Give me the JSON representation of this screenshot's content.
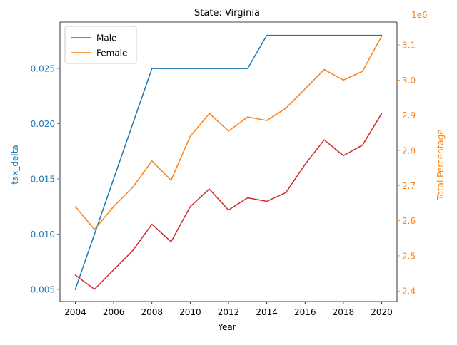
{
  "chart_data": {
    "type": "line",
    "title": "State: Virginia",
    "xlabel": "Year",
    "ylabel_left": "tax_delta",
    "ylabel_right": "Total Percentage",
    "right_axis_multiplier": "1e6",
    "x": [
      2004,
      2005,
      2006,
      2007,
      2008,
      2009,
      2010,
      2011,
      2012,
      2013,
      2014,
      2015,
      2016,
      2017,
      2018,
      2019,
      2020
    ],
    "x_ticks": [
      2004,
      2006,
      2008,
      2010,
      2012,
      2014,
      2016,
      2018,
      2020
    ],
    "xlim": [
      2003.2,
      2020.8
    ],
    "left_axis": {
      "color": "#1f77b4",
      "ylim": [
        0.0039,
        0.0292
      ],
      "ticks": [
        0.005,
        0.01,
        0.015,
        0.02,
        0.025
      ],
      "tick_labels": [
        "0.005",
        "0.010",
        "0.015",
        "0.020",
        "0.025"
      ]
    },
    "right_axis": {
      "color": "#ff7f0e",
      "ylim": [
        2.37,
        3.165
      ],
      "ticks": [
        2.4,
        2.5,
        2.6,
        2.7,
        2.8,
        2.9,
        3.0,
        3.1
      ],
      "tick_labels": [
        "2.4",
        "2.5",
        "2.6",
        "2.7",
        "2.8",
        "2.9",
        "3.0",
        "3.1"
      ]
    },
    "series": [
      {
        "axis": "left",
        "color": "#1f77b4",
        "values": [
          0.005,
          0.01,
          0.015,
          0.02,
          0.025,
          0.025,
          0.025,
          0.025,
          0.025,
          0.025,
          0.028,
          0.028,
          0.028,
          0.028,
          0.028,
          0.028,
          0.028
        ]
      },
      {
        "name": "Male",
        "axis": "right",
        "color": "#d62728",
        "values": [
          2.445,
          2.405,
          2.46,
          2.515,
          2.59,
          2.54,
          2.64,
          2.69,
          2.63,
          2.665,
          2.655,
          2.68,
          2.76,
          2.83,
          2.785,
          2.815,
          2.905
        ]
      },
      {
        "name": "Female",
        "axis": "right",
        "color": "#ff7f0e",
        "values": [
          2.64,
          2.575,
          2.64,
          2.695,
          2.77,
          2.715,
          2.84,
          2.905,
          2.855,
          2.895,
          2.885,
          2.92,
          2.975,
          3.03,
          3.0,
          3.025,
          3.125
        ]
      }
    ],
    "legend": {
      "placement": "top-left",
      "entries": [
        "Male",
        "Female"
      ]
    },
    "grid": false
  }
}
